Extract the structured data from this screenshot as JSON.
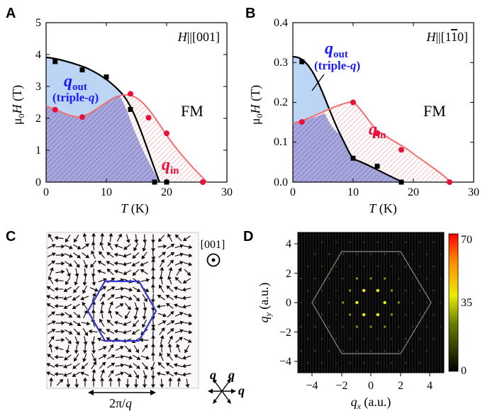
{
  "panels": {
    "A": {
      "label": "A",
      "field_label": "H||[001]",
      "fm_label": "FM",
      "qout_label": "q",
      "qout_sub": "out",
      "qout_paren": "(triple-q)",
      "qin_label": "q",
      "qin_sub": "in",
      "xlabel": "T (K)",
      "ylabel": "μ0H (T)",
      "xticks": [
        "0",
        "10",
        "20",
        "30"
      ],
      "yticks": [
        "0",
        "1",
        "2",
        "3",
        "4",
        "5"
      ]
    },
    "B": {
      "label": "B",
      "field_label": "H||[11̄0]",
      "fm_label": "FM",
      "qout_label": "q",
      "qout_sub": "out",
      "qout_paren": "(triple-q)",
      "qin_label": "q",
      "qin_sub": "in",
      "xlabel": "T (K)",
      "ylabel": "μ0H (T)",
      "xticks": [
        "0",
        "10",
        "20",
        "30"
      ],
      "yticks": [
        "0.0",
        "0.1",
        "0.2",
        "0.3",
        "0.4"
      ]
    },
    "C": {
      "label": "C",
      "direction_label": "[001]",
      "scale_label": "2π/q",
      "q_label": "q"
    },
    "D": {
      "label": "D",
      "xlabel": "qx (a.u.)",
      "ylabel": "qy (a.u.)",
      "xticks": [
        "−4",
        "−2",
        "0",
        "2",
        "4"
      ],
      "yticks": [
        "4",
        "2",
        "0",
        "−2",
        "−4"
      ],
      "colorbar_ticks": [
        "70",
        "35",
        "0"
      ]
    }
  },
  "chart_data": [
    {
      "type": "line",
      "panel": "A",
      "xlim": [
        0,
        30
      ],
      "ylim": [
        0,
        5
      ],
      "series": [
        {
          "color": "#000000",
          "x": [
            1.5,
            6,
            10,
            14,
            18
          ],
          "y": [
            3.78,
            3.52,
            3.3,
            2.28,
            0
          ]
        },
        {
          "color": "#e8103a",
          "x": [
            1.5,
            6,
            14,
            17,
            20,
            26
          ],
          "y": [
            2.27,
            2.04,
            2.77,
            2.02,
            1.53,
            0
          ]
        },
        {
          "color": "#000000",
          "x": [
            20
          ],
          "y": [
            0
          ]
        }
      ]
    },
    {
      "type": "line",
      "panel": "B",
      "xlim": [
        0,
        30
      ],
      "ylim": [
        0,
        0.4
      ],
      "series": [
        {
          "color": "#000000",
          "x": [
            1.5,
            10,
            14,
            18
          ],
          "y": [
            0.302,
            0.06,
            0.04,
            0
          ]
        },
        {
          "color": "#e8103a",
          "x": [
            1.5,
            10,
            14,
            18,
            26
          ],
          "y": [
            0.151,
            0.2,
            0.122,
            0.081,
            0
          ]
        }
      ]
    },
    {
      "type": "heatmap",
      "panel": "D",
      "xlim": [
        -5,
        5
      ],
      "ylim": [
        -5,
        5
      ],
      "colorbar_range": [
        0,
        70
      ]
    }
  ]
}
